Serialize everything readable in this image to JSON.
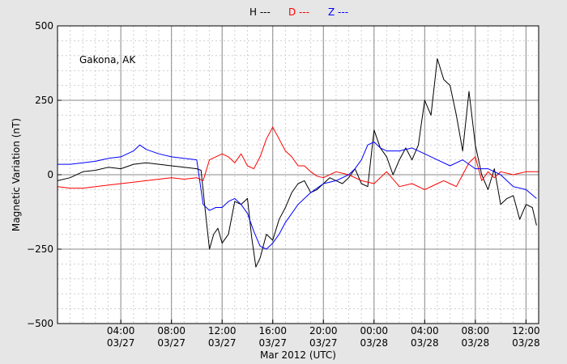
{
  "chart_data": {
    "type": "line",
    "title": "",
    "annotation": "Gakona, AK",
    "xlabel": "Mar 2012 (UTC)",
    "ylabel": "Magnetic Variation (nT)",
    "xlim": [
      "2012-03-26 23:00",
      "2012-03-28 13:00"
    ],
    "ylim": [
      -500,
      500
    ],
    "y_ticks": [
      -500,
      -250,
      0,
      250,
      500
    ],
    "y_tick_labels": [
      "−500",
      "−250",
      "0",
      "250",
      "500"
    ],
    "x_ticks": [
      {
        "x": "2012-03-27 04:00",
        "line1": "04:00",
        "line2": "03/27"
      },
      {
        "x": "2012-03-27 08:00",
        "line1": "08:00",
        "line2": "03/27"
      },
      {
        "x": "2012-03-27 12:00",
        "line1": "12:00",
        "line2": "03/27"
      },
      {
        "x": "2012-03-27 16:00",
        "line1": "16:00",
        "line2": "03/27"
      },
      {
        "x": "2012-03-27 20:00",
        "line1": "20:00",
        "line2": "03/27"
      },
      {
        "x": "2012-03-28 00:00",
        "line1": "00:00",
        "line2": "03/28"
      },
      {
        "x": "2012-03-28 04:00",
        "line1": "04:00",
        "line2": "03/28"
      },
      {
        "x": "2012-03-28 08:00",
        "line1": "08:00",
        "line2": "03/28"
      },
      {
        "x": "2012-03-28 12:00",
        "line1": "12:00",
        "line2": "03/28"
      }
    ],
    "grid": true,
    "legend_position": "top-center",
    "legend": [
      {
        "label": "H ---",
        "color": "#000000"
      },
      {
        "label": "D ---",
        "color": "#ff0000"
      },
      {
        "label": "Z ---",
        "color": "#0000ff"
      }
    ],
    "series": [
      {
        "name": "H",
        "color": "#000000",
        "x": [
          "2012-03-26 23:00",
          "2012-03-27 00:00",
          "2012-03-27 01:00",
          "2012-03-27 02:00",
          "2012-03-27 03:00",
          "2012-03-27 04:00",
          "2012-03-27 05:00",
          "2012-03-27 06:00",
          "2012-03-27 07:00",
          "2012-03-27 08:00",
          "2012-03-27 09:00",
          "2012-03-27 10:00",
          "2012-03-27 10:20",
          "2012-03-27 10:40",
          "2012-03-27 11:00",
          "2012-03-27 11:20",
          "2012-03-27 11:40",
          "2012-03-27 12:00",
          "2012-03-27 12:30",
          "2012-03-27 13:00",
          "2012-03-27 13:30",
          "2012-03-27 14:00",
          "2012-03-27 14:20",
          "2012-03-27 14:40",
          "2012-03-27 15:00",
          "2012-03-27 15:30",
          "2012-03-27 16:00",
          "2012-03-27 16:30",
          "2012-03-27 17:00",
          "2012-03-27 17:30",
          "2012-03-27 18:00",
          "2012-03-27 18:30",
          "2012-03-27 19:00",
          "2012-03-27 19:30",
          "2012-03-27 20:00",
          "2012-03-27 20:30",
          "2012-03-27 21:00",
          "2012-03-27 21:30",
          "2012-03-27 22:00",
          "2012-03-27 22:30",
          "2012-03-27 23:00",
          "2012-03-27 23:30",
          "2012-03-28 00:00",
          "2012-03-28 00:30",
          "2012-03-28 01:00",
          "2012-03-28 01:30",
          "2012-03-28 02:00",
          "2012-03-28 02:30",
          "2012-03-28 03:00",
          "2012-03-28 03:30",
          "2012-03-28 04:00",
          "2012-03-28 04:30",
          "2012-03-28 05:00",
          "2012-03-28 05:30",
          "2012-03-28 06:00",
          "2012-03-28 06:30",
          "2012-03-28 07:00",
          "2012-03-28 07:30",
          "2012-03-28 08:00",
          "2012-03-28 08:30",
          "2012-03-28 09:00",
          "2012-03-28 09:30",
          "2012-03-28 10:00",
          "2012-03-28 10:30",
          "2012-03-28 11:00",
          "2012-03-28 11:30",
          "2012-03-28 12:00",
          "2012-03-28 12:30",
          "2012-03-28 12:50"
        ],
        "y": [
          -20,
          -10,
          10,
          15,
          25,
          20,
          35,
          40,
          35,
          30,
          25,
          20,
          15,
          -120,
          -250,
          -200,
          -180,
          -230,
          -200,
          -90,
          -100,
          -80,
          -210,
          -310,
          -280,
          -200,
          -220,
          -150,
          -110,
          -60,
          -30,
          -20,
          -60,
          -50,
          -30,
          -10,
          -20,
          -30,
          -10,
          20,
          -30,
          -40,
          150,
          90,
          60,
          0,
          50,
          90,
          50,
          100,
          250,
          200,
          390,
          320,
          300,
          200,
          80,
          280,
          100,
          0,
          -50,
          20,
          -100,
          -80,
          -70,
          -150,
          -100,
          -110,
          -170
        ]
      },
      {
        "name": "D",
        "color": "#ff0000",
        "x": [
          "2012-03-26 23:00",
          "2012-03-27 00:00",
          "2012-03-27 01:00",
          "2012-03-27 02:00",
          "2012-03-27 03:00",
          "2012-03-27 04:00",
          "2012-03-27 05:00",
          "2012-03-27 06:00",
          "2012-03-27 07:00",
          "2012-03-27 08:00",
          "2012-03-27 09:00",
          "2012-03-27 10:00",
          "2012-03-27 10:30",
          "2012-03-27 11:00",
          "2012-03-27 11:30",
          "2012-03-27 12:00",
          "2012-03-27 12:30",
          "2012-03-27 13:00",
          "2012-03-27 13:30",
          "2012-03-27 14:00",
          "2012-03-27 14:30",
          "2012-03-27 15:00",
          "2012-03-27 15:30",
          "2012-03-27 16:00",
          "2012-03-27 16:30",
          "2012-03-27 17:00",
          "2012-03-27 17:30",
          "2012-03-27 18:00",
          "2012-03-27 18:30",
          "2012-03-27 19:00",
          "2012-03-27 19:30",
          "2012-03-27 20:00",
          "2012-03-27 21:00",
          "2012-03-27 22:00",
          "2012-03-27 23:00",
          "2012-03-28 00:00",
          "2012-03-28 01:00",
          "2012-03-28 02:00",
          "2012-03-28 03:00",
          "2012-03-28 04:00",
          "2012-03-28 05:00",
          "2012-03-28 05:30",
          "2012-03-28 06:00",
          "2012-03-28 06:30",
          "2012-03-28 07:00",
          "2012-03-28 07:30",
          "2012-03-28 08:00",
          "2012-03-28 08:30",
          "2012-03-28 09:00",
          "2012-03-28 09:30",
          "2012-03-28 10:00",
          "2012-03-28 11:00",
          "2012-03-28 12:00",
          "2012-03-28 13:00"
        ],
        "y": [
          -40,
          -45,
          -45,
          -40,
          -35,
          -30,
          -25,
          -20,
          -15,
          -10,
          -15,
          -10,
          -20,
          50,
          60,
          70,
          60,
          40,
          70,
          30,
          20,
          60,
          120,
          160,
          120,
          80,
          60,
          30,
          30,
          10,
          -5,
          -10,
          10,
          0,
          -20,
          -30,
          10,
          -40,
          -30,
          -50,
          -30,
          -20,
          -30,
          -40,
          0,
          40,
          60,
          -20,
          10,
          -10,
          10,
          0,
          10,
          10
        ]
      },
      {
        "name": "Z",
        "color": "#0000ff",
        "x": [
          "2012-03-26 23:00",
          "2012-03-27 00:00",
          "2012-03-27 01:00",
          "2012-03-27 02:00",
          "2012-03-27 03:00",
          "2012-03-27 04:00",
          "2012-03-27 05:00",
          "2012-03-27 05:30",
          "2012-03-27 06:00",
          "2012-03-27 07:00",
          "2012-03-27 08:00",
          "2012-03-27 09:00",
          "2012-03-27 10:00",
          "2012-03-27 10:30",
          "2012-03-27 11:00",
          "2012-03-27 11:30",
          "2012-03-27 12:00",
          "2012-03-27 12:30",
          "2012-03-27 13:00",
          "2012-03-27 13:30",
          "2012-03-27 14:00",
          "2012-03-27 14:30",
          "2012-03-27 15:00",
          "2012-03-27 15:30",
          "2012-03-27 16:00",
          "2012-03-27 16:30",
          "2012-03-27 17:00",
          "2012-03-27 18:00",
          "2012-03-27 19:00",
          "2012-03-27 20:00",
          "2012-03-27 21:00",
          "2012-03-27 22:00",
          "2012-03-27 22:30",
          "2012-03-27 23:00",
          "2012-03-27 23:30",
          "2012-03-28 00:00",
          "2012-03-28 00:30",
          "2012-03-28 01:00",
          "2012-03-28 02:00",
          "2012-03-28 03:00",
          "2012-03-28 04:00",
          "2012-03-28 05:00",
          "2012-03-28 06:00",
          "2012-03-28 07:00",
          "2012-03-28 08:00",
          "2012-03-28 09:00",
          "2012-03-28 10:00",
          "2012-03-28 11:00",
          "2012-03-28 12:00",
          "2012-03-28 12:50"
        ],
        "y": [
          35,
          35,
          40,
          45,
          55,
          60,
          80,
          100,
          85,
          70,
          60,
          55,
          50,
          -100,
          -120,
          -110,
          -110,
          -90,
          -80,
          -100,
          -130,
          -190,
          -240,
          -250,
          -230,
          -200,
          -160,
          -100,
          -60,
          -30,
          -20,
          0,
          20,
          50,
          100,
          110,
          90,
          80,
          80,
          90,
          70,
          50,
          30,
          50,
          20,
          20,
          0,
          -40,
          -50,
          -80
        ]
      }
    ]
  }
}
